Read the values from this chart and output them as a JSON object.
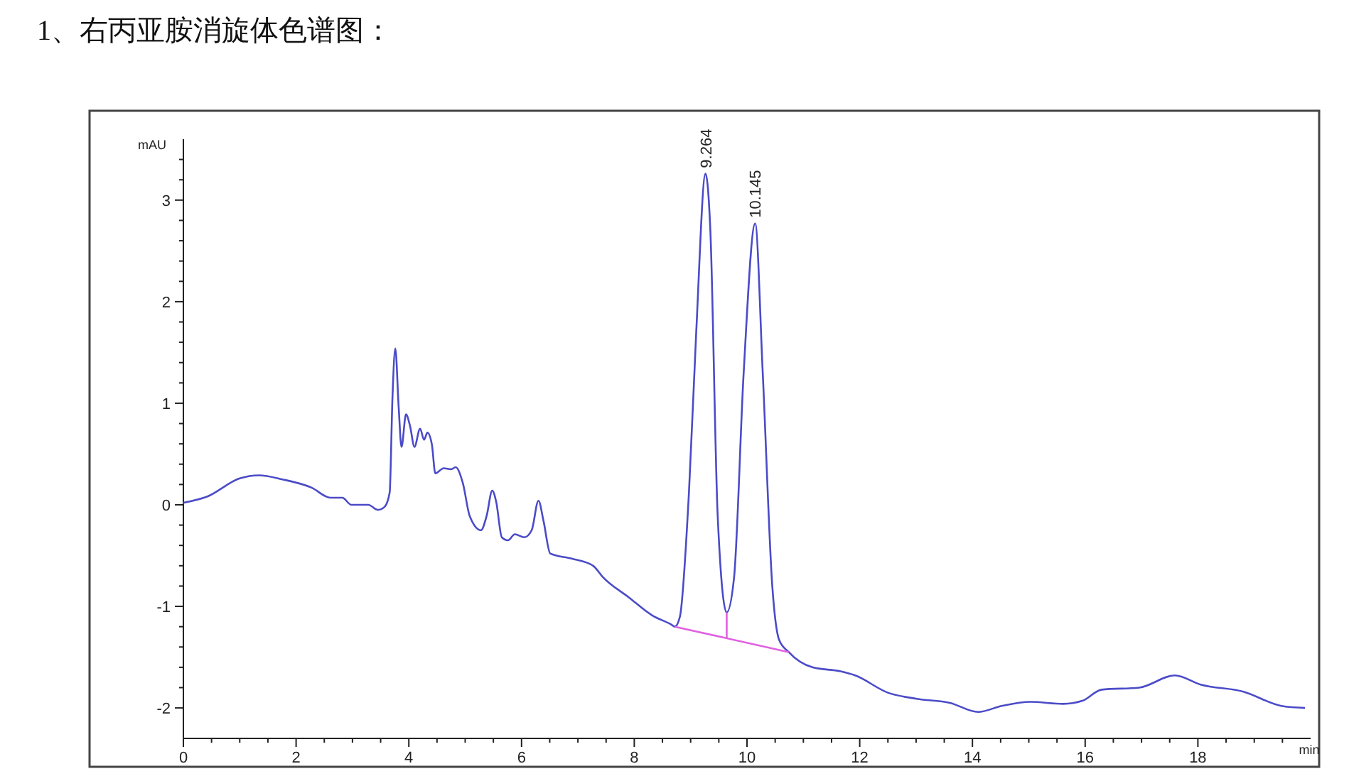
{
  "chart_data": {
    "type": "line",
    "title": "1、右丙亚胺消旋体色谱图：",
    "xlabel": "min",
    "ylabel": "mAU",
    "xlim": [
      0,
      20
    ],
    "ylim": [
      -2.3,
      3.6
    ],
    "xticks": [
      0,
      {
        "value": 0.5,
        "label": null
      },
      {
        "value": 1,
        "label": null
      },
      {
        "value": 1.5,
        "label": null
      },
      2,
      {
        "value": 2.5,
        "label": null
      },
      {
        "value": 3,
        "label": null
      },
      {
        "value": 3.5,
        "label": null
      },
      4,
      {
        "value": 4.5,
        "label": null
      },
      {
        "value": 5,
        "label": null
      },
      {
        "value": 5.5,
        "label": null
      },
      6,
      {
        "value": 6.5,
        "label": null
      },
      {
        "value": 7,
        "label": null
      },
      {
        "value": 7.5,
        "label": null
      },
      8,
      {
        "value": 8.5,
        "label": null
      },
      {
        "value": 9,
        "label": null
      },
      {
        "value": 9.5,
        "label": null
      },
      10,
      {
        "value": 10.5,
        "label": null
      },
      {
        "value": 11,
        "label": null
      },
      {
        "value": 11.5,
        "label": null
      },
      12,
      {
        "value": 12.5,
        "label": null
      },
      {
        "value": 13,
        "label": null
      },
      {
        "value": 13.5,
        "label": null
      },
      14,
      {
        "value": 14.5,
        "label": null
      },
      {
        "value": 15,
        "label": null
      },
      {
        "value": 15.5,
        "label": null
      },
      16,
      {
        "value": 16.5,
        "label": null
      },
      {
        "value": 17,
        "label": null
      },
      {
        "value": 17.5,
        "label": null
      },
      18,
      {
        "value": 18.5,
        "label": null
      },
      {
        "value": 19,
        "label": null
      },
      {
        "value": 19.5,
        "label": null
      }
    ],
    "yticks": [
      -2,
      {
        "value": -1.8,
        "label": null
      },
      {
        "value": -1.6,
        "label": null
      },
      {
        "value": -1.4,
        "label": null
      },
      {
        "value": -1.2,
        "label": null
      },
      -1,
      {
        "value": -0.8,
        "label": null
      },
      {
        "value": -0.6,
        "label": null
      },
      {
        "value": -0.4,
        "label": null
      },
      {
        "value": -0.2,
        "label": null
      },
      0,
      {
        "value": 0.2,
        "label": null
      },
      {
        "value": 0.4,
        "label": null
      },
      {
        "value": 0.6,
        "label": null
      },
      {
        "value": 0.8,
        "label": null
      },
      1,
      {
        "value": 1.2,
        "label": null
      },
      {
        "value": 1.4,
        "label": null
      },
      {
        "value": 1.6,
        "label": null
      },
      {
        "value": 1.8,
        "label": null
      },
      2,
      {
        "value": 2.2,
        "label": null
      },
      {
        "value": 2.4,
        "label": null
      },
      {
        "value": 2.6,
        "label": null
      },
      {
        "value": 2.8,
        "label": null
      },
      3,
      {
        "value": 3.2,
        "label": null
      },
      {
        "value": 3.4,
        "label": null
      }
    ],
    "line_style": "solid",
    "marker": "none",
    "series": [
      {
        "color": "#4b4bc8",
        "x": [
          0,
          0.42,
          1.0,
          1.34,
          1.76,
          2.27,
          2.61,
          2.82,
          2.98,
          3.28,
          3.45,
          3.57,
          3.66,
          3.71,
          3.76,
          3.82,
          3.87,
          3.95,
          4.02,
          4.1,
          4.2,
          4.27,
          4.33,
          4.41,
          4.47,
          4.62,
          4.75,
          4.83,
          4.96,
          5.08,
          5.28,
          5.38,
          5.48,
          5.55,
          5.65,
          5.76,
          5.88,
          6.05,
          6.18,
          6.3,
          6.39,
          6.51,
          6.89,
          7.27,
          7.44,
          7.9,
          8.32,
          8.66,
          8.72,
          8.81,
          8.97,
          9.1,
          9.264,
          9.35,
          9.48,
          9.64,
          9.77,
          9.94,
          10.145,
          10.28,
          10.45,
          10.57,
          10.74,
          11.16,
          11.66,
          11.92,
          12.5,
          13.01,
          13.6,
          14.1,
          14.52,
          15.03,
          15.61,
          15.95,
          16.29,
          16.96,
          17.59,
          18.05,
          18.81,
          19.48,
          19.9
        ],
        "values": [
          0.02,
          0.08,
          0.26,
          0.29,
          0.25,
          0.17,
          0.07,
          0.07,
          0.0,
          0.0,
          -0.05,
          -0.02,
          0.12,
          1.06,
          1.54,
          0.96,
          0.57,
          0.89,
          0.78,
          0.57,
          0.75,
          0.64,
          0.71,
          0.59,
          0.31,
          0.36,
          0.35,
          0.37,
          0.21,
          -0.11,
          -0.25,
          -0.11,
          0.14,
          0.03,
          -0.32,
          -0.35,
          -0.29,
          -0.32,
          -0.25,
          0.04,
          -0.16,
          -0.48,
          -0.53,
          -0.6,
          -0.71,
          -0.91,
          -1.09,
          -1.18,
          -1.2,
          -1.1,
          0.12,
          1.71,
          3.26,
          2.7,
          -0.11,
          -1.06,
          -0.72,
          1.29,
          2.77,
          1.29,
          -0.81,
          -1.33,
          -1.45,
          -1.6,
          -1.64,
          -1.68,
          -1.85,
          -1.91,
          -1.95,
          -2.04,
          -1.98,
          -1.94,
          -1.96,
          -1.93,
          -1.82,
          -1.8,
          -1.68,
          -1.77,
          -1.84,
          -1.98,
          -2.0
        ]
      },
      {
        "color": "#e060e0",
        "x": [
          8.72,
          10.74
        ],
        "values": [
          -1.2,
          -1.45
        ]
      },
      {
        "color": "#e060e0",
        "x": [
          9.64,
          9.64
        ],
        "values": [
          -1.31,
          -1.06
        ]
      }
    ],
    "annotations": [
      {
        "text": "9.264",
        "x": 9.264,
        "y": 3.26
      },
      {
        "text": "10.145",
        "x": 10.145,
        "y": 2.77
      }
    ]
  }
}
